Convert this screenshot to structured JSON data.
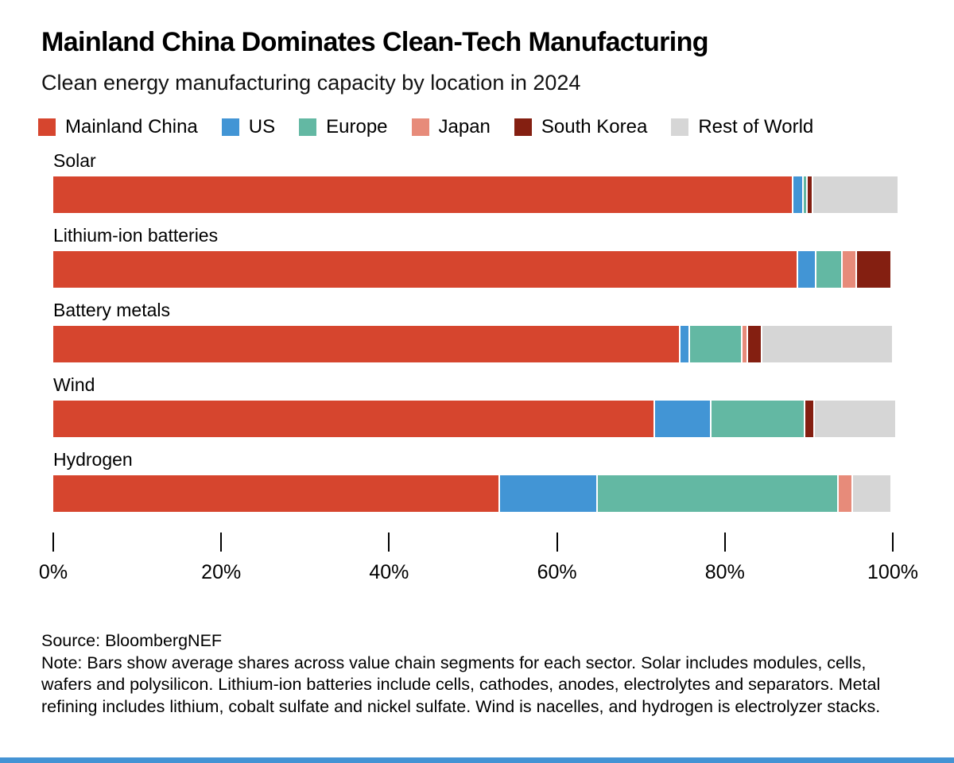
{
  "header": {
    "title": "Mainland China Dominates Clean-Tech Manufacturing",
    "subtitle": "Clean energy manufacturing capacity by location in 2024"
  },
  "chart_data": {
    "type": "bar",
    "orientation": "horizontal",
    "stacked": true,
    "unit": "percent",
    "xlim": [
      0,
      100
    ],
    "x_ticks": [
      {
        "label": "0%",
        "value": 0
      },
      {
        "label": "20%",
        "value": 20
      },
      {
        "label": "40%",
        "value": 40
      },
      {
        "label": "60%",
        "value": 60
      },
      {
        "label": "80%",
        "value": 80
      },
      {
        "label": "100%",
        "value": 100
      }
    ],
    "series_names": [
      "Mainland China",
      "US",
      "Europe",
      "Japan",
      "South Korea",
      "Rest of World"
    ],
    "series_colors": [
      "#d6452e",
      "#4295d5",
      "#63b8a3",
      "#e78b7a",
      "#841f11",
      "#d6d6d6"
    ],
    "legend_position": "top",
    "grid": false,
    "rows": [
      {
        "label": "Solar",
        "values": [
          88.0,
          1.0,
          0.3,
          0.0,
          0.5,
          10.0
        ]
      },
      {
        "label": "Lithium-ion batteries",
        "values": [
          88.5,
          2.0,
          3.0,
          1.5,
          4.0,
          0.0
        ]
      },
      {
        "label": "Battery metals",
        "values": [
          74.5,
          1.0,
          6.0,
          0.5,
          1.5,
          15.5
        ]
      },
      {
        "label": "Wind",
        "values": [
          71.5,
          6.5,
          11.0,
          0.0,
          1.0,
          9.5
        ]
      },
      {
        "label": "Hydrogen",
        "values": [
          53.0,
          11.5,
          28.5,
          1.5,
          0.0,
          4.5
        ]
      }
    ]
  },
  "footer": {
    "source": "Source: BloombergNEF",
    "note": "Note: Bars show average shares across value chain segments for each sector. Solar includes modules, cells, wafers and polysilicon. Lithium-ion batteries include cells, cathodes, anodes, electrolytes and separators. Metal refining includes lithium, cobalt sulfate and nickel sulfate. Wind is nacelles, and hydrogen is electrolyzer stacks."
  },
  "accent_bar_color": "#4493d4"
}
